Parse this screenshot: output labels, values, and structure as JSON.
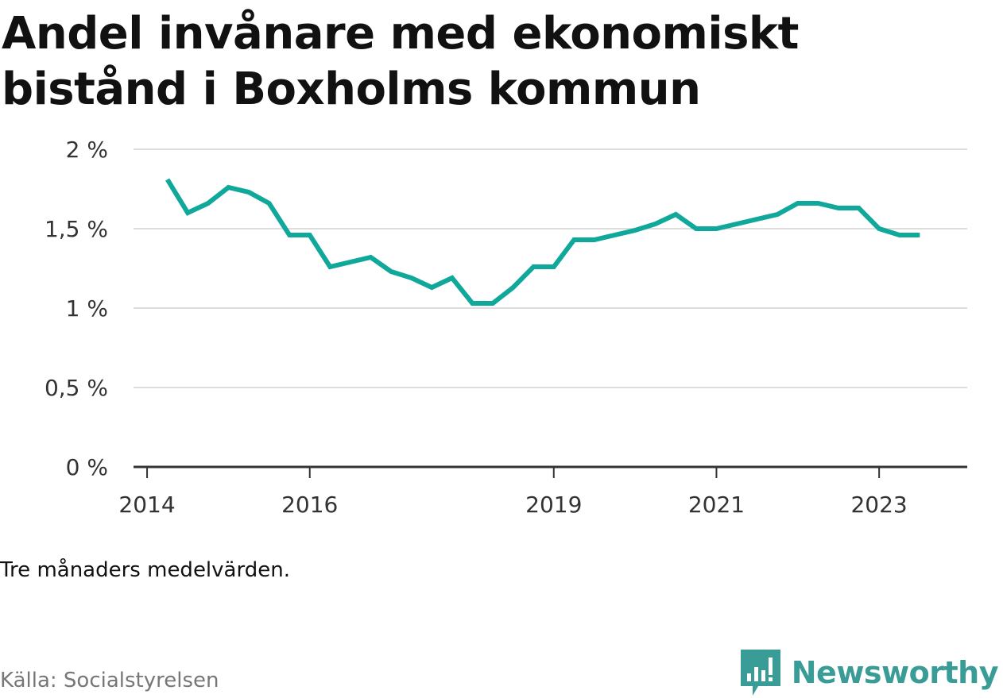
{
  "title": "Andel invånare med ekonomiskt bistånd i Boxholms kommun",
  "note": "Tre månaders medelvärden.",
  "source": "Källa: Socialstyrelsen",
  "brand": {
    "name": "Newsworthy",
    "logo_icon": "newsworthy-chart-icon",
    "color": "#3a9c96"
  },
  "chart_data": {
    "type": "line",
    "title": "Andel invånare med ekonomiskt bistånd i Boxholms kommun",
    "xlabel": "",
    "ylabel": "",
    "line_color": "#10a89b",
    "grid": true,
    "ylim": [
      0,
      2
    ],
    "y_ticks": [
      {
        "value": 0,
        "label": "0 %"
      },
      {
        "value": 0.5,
        "label": "0,5 %"
      },
      {
        "value": 1,
        "label": "1 %"
      },
      {
        "value": 1.5,
        "label": "1,5 %"
      },
      {
        "value": 2,
        "label": "2 %"
      }
    ],
    "x_range": [
      "2013-11",
      "2024-02"
    ],
    "x_ticks": [
      {
        "value": "2014-01",
        "label": "2014"
      },
      {
        "value": "2016-01",
        "label": "2016"
      },
      {
        "value": "2019-01",
        "label": "2019"
      },
      {
        "value": "2021-01",
        "label": "2021"
      },
      {
        "value": "2023-01",
        "label": "2023"
      }
    ],
    "series": [
      {
        "points": [
          {
            "x": "2014-04",
            "y": 1.81
          },
          {
            "x": "2014-07",
            "y": 1.6
          },
          {
            "x": "2014-10",
            "y": 1.66
          },
          {
            "x": "2015-01",
            "y": 1.76
          },
          {
            "x": "2015-04",
            "y": 1.73
          },
          {
            "x": "2015-07",
            "y": 1.66
          },
          {
            "x": "2015-10",
            "y": 1.46
          },
          {
            "x": "2016-01",
            "y": 1.46
          },
          {
            "x": "2016-04",
            "y": 1.26
          },
          {
            "x": "2016-07",
            "y": 1.29
          },
          {
            "x": "2016-10",
            "y": 1.32
          },
          {
            "x": "2017-01",
            "y": 1.23
          },
          {
            "x": "2017-04",
            "y": 1.19
          },
          {
            "x": "2017-07",
            "y": 1.13
          },
          {
            "x": "2017-10",
            "y": 1.19
          },
          {
            "x": "2018-01",
            "y": 1.03
          },
          {
            "x": "2018-04",
            "y": 1.03
          },
          {
            "x": "2018-07",
            "y": 1.13
          },
          {
            "x": "2018-10",
            "y": 1.26
          },
          {
            "x": "2019-01",
            "y": 1.26
          },
          {
            "x": "2019-04",
            "y": 1.43
          },
          {
            "x": "2019-07",
            "y": 1.43
          },
          {
            "x": "2019-10",
            "y": 1.46
          },
          {
            "x": "2020-01",
            "y": 1.49
          },
          {
            "x": "2020-04",
            "y": 1.53
          },
          {
            "x": "2020-07",
            "y": 1.59
          },
          {
            "x": "2020-10",
            "y": 1.5
          },
          {
            "x": "2021-01",
            "y": 1.5
          },
          {
            "x": "2021-04",
            "y": 1.53
          },
          {
            "x": "2021-07",
            "y": 1.56
          },
          {
            "x": "2021-10",
            "y": 1.59
          },
          {
            "x": "2022-01",
            "y": 1.66
          },
          {
            "x": "2022-04",
            "y": 1.66
          },
          {
            "x": "2022-07",
            "y": 1.63
          },
          {
            "x": "2022-10",
            "y": 1.63
          },
          {
            "x": "2023-01",
            "y": 1.5
          },
          {
            "x": "2023-04",
            "y": 1.46
          },
          {
            "x": "2023-07",
            "y": 1.46
          }
        ]
      }
    ]
  }
}
